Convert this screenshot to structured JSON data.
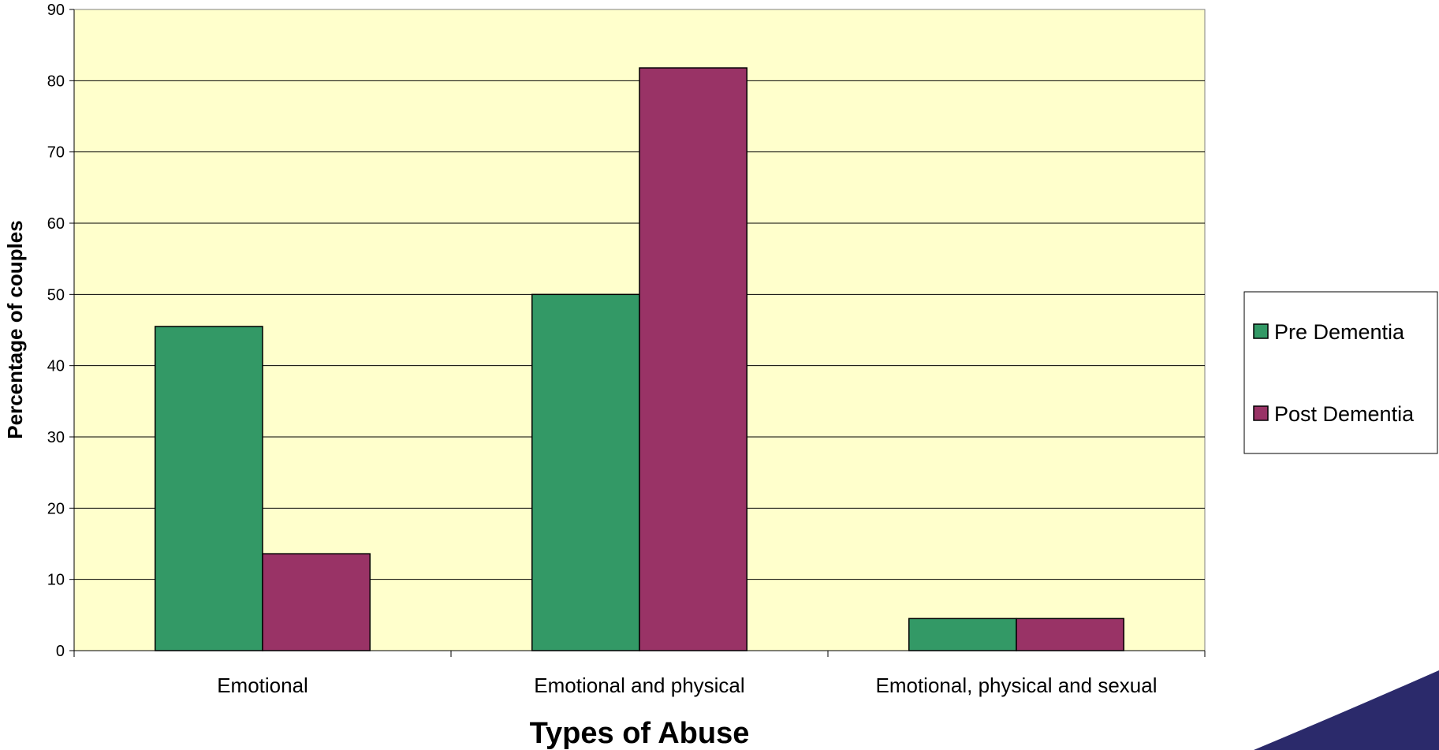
{
  "chart_data": {
    "type": "bar",
    "title": "",
    "xlabel": "Types of Abuse",
    "ylabel": "Percentage of couples",
    "categories": [
      "Emotional",
      "Emotional and physical",
      "Emotional, physical and sexual"
    ],
    "series": [
      {
        "name": "Pre Dementia",
        "values": [
          45.5,
          50,
          4.5
        ],
        "color": "#339966"
      },
      {
        "name": "Post Dementia",
        "values": [
          13.6,
          81.8,
          4.5
        ],
        "color": "#993366"
      }
    ],
    "ylim": [
      0,
      90
    ],
    "yticks": [
      0,
      10,
      20,
      30,
      40,
      50,
      60,
      70,
      80,
      90
    ],
    "grid": true,
    "legend_position": "right",
    "plot_background": "#ffffcc"
  },
  "decoration": {
    "corner_swoosh_color": "#2b2a6b"
  }
}
